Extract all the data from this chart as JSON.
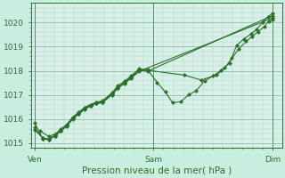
{
  "background_color": "#c8eee0",
  "plot_bg_color": "#d8f0e8",
  "grid_major_color": "#88bbaa",
  "grid_minor_color": "#aad4c4",
  "line_color": "#2d6e2d",
  "xlabel": "Pression niveau de la mer( hPa )",
  "xtick_labels": [
    "Ven",
    "Sam",
    "Dim"
  ],
  "xtick_positions": [
    0.0,
    1.0,
    2.0
  ],
  "ylim": [
    1014.8,
    1020.8
  ],
  "yticks": [
    1015,
    1016,
    1017,
    1018,
    1019,
    1020
  ],
  "figsize": [
    3.2,
    2.0
  ],
  "dpi": 100,
  "xlim": [
    -0.03,
    2.08
  ],
  "series": [
    {
      "points": [
        [
          0.0,
          1015.85
        ],
        [
          0.07,
          1015.18
        ],
        [
          0.12,
          1015.15
        ],
        [
          0.17,
          1015.3
        ],
        [
          0.22,
          1015.52
        ],
        [
          0.27,
          1015.72
        ],
        [
          0.32,
          1016.05
        ],
        [
          0.37,
          1016.25
        ],
        [
          0.42,
          1016.45
        ],
        [
          0.47,
          1016.6
        ],
        [
          0.52,
          1016.68
        ],
        [
          0.57,
          1016.73
        ],
        [
          0.65,
          1017.05
        ],
        [
          0.7,
          1017.3
        ],
        [
          0.76,
          1017.52
        ],
        [
          0.81,
          1017.72
        ],
        [
          0.88,
          1018.02
        ],
        [
          0.95,
          1018.05
        ],
        [
          1.03,
          1017.52
        ],
        [
          1.1,
          1017.12
        ],
        [
          1.16,
          1016.68
        ],
        [
          1.23,
          1016.72
        ],
        [
          1.3,
          1017.02
        ],
        [
          1.36,
          1017.18
        ],
        [
          1.43,
          1017.58
        ],
        [
          1.5,
          1017.78
        ],
        [
          1.57,
          1018.02
        ],
        [
          1.64,
          1018.32
        ],
        [
          1.7,
          1019.05
        ],
        [
          1.76,
          1019.32
        ],
        [
          1.82,
          1019.52
        ],
        [
          1.87,
          1019.72
        ],
        [
          1.92,
          1020.02
        ],
        [
          1.96,
          1020.22
        ],
        [
          2.0,
          1020.38
        ]
      ]
    },
    {
      "points": [
        [
          0.05,
          1015.5
        ],
        [
          0.12,
          1015.28
        ],
        [
          0.17,
          1015.38
        ],
        [
          0.22,
          1015.58
        ],
        [
          0.27,
          1015.78
        ],
        [
          0.32,
          1016.08
        ],
        [
          0.37,
          1016.28
        ],
        [
          0.42,
          1016.48
        ],
        [
          0.47,
          1016.6
        ],
        [
          0.52,
          1016.7
        ],
        [
          0.57,
          1016.75
        ],
        [
          0.65,
          1017.08
        ],
        [
          0.7,
          1017.38
        ],
        [
          0.76,
          1017.58
        ],
        [
          0.81,
          1017.78
        ],
        [
          0.88,
          1018.08
        ],
        [
          0.95,
          1018.02
        ],
        [
          1.26,
          1017.82
        ],
        [
          1.4,
          1017.62
        ],
        [
          1.53,
          1017.82
        ],
        [
          1.6,
          1018.12
        ],
        [
          1.66,
          1018.52
        ],
        [
          1.72,
          1018.92
        ],
        [
          1.78,
          1019.22
        ],
        [
          1.83,
          1019.42
        ],
        [
          1.88,
          1019.62
        ],
        [
          1.93,
          1019.82
        ],
        [
          1.97,
          1020.05
        ],
        [
          2.0,
          1020.12
        ]
      ]
    },
    {
      "points": [
        [
          0.0,
          1015.55
        ],
        [
          0.07,
          1015.22
        ],
        [
          0.12,
          1015.18
        ],
        [
          0.17,
          1015.32
        ],
        [
          0.22,
          1015.52
        ],
        [
          0.27,
          1015.72
        ],
        [
          0.32,
          1016.02
        ],
        [
          0.37,
          1016.22
        ],
        [
          0.42,
          1016.42
        ],
        [
          0.47,
          1016.56
        ],
        [
          0.52,
          1016.66
        ],
        [
          0.57,
          1016.7
        ],
        [
          0.65,
          1017.02
        ],
        [
          0.7,
          1017.32
        ],
        [
          0.76,
          1017.52
        ],
        [
          0.81,
          1017.72
        ],
        [
          0.88,
          1018.02
        ],
        [
          0.95,
          1017.98
        ],
        [
          2.0,
          1020.28
        ]
      ]
    },
    {
      "points": [
        [
          0.0,
          1015.65
        ],
        [
          0.07,
          1015.2
        ],
        [
          0.12,
          1015.16
        ],
        [
          0.17,
          1015.3
        ],
        [
          0.22,
          1015.5
        ],
        [
          0.27,
          1015.7
        ],
        [
          0.32,
          1016.0
        ],
        [
          0.37,
          1016.2
        ],
        [
          0.42,
          1016.4
        ],
        [
          0.47,
          1016.54
        ],
        [
          0.52,
          1016.64
        ],
        [
          0.57,
          1016.68
        ],
        [
          0.65,
          1017.0
        ],
        [
          0.7,
          1017.28
        ],
        [
          0.76,
          1017.48
        ],
        [
          0.81,
          1017.68
        ],
        [
          0.88,
          1017.98
        ],
        [
          2.0,
          1020.18
        ]
      ]
    }
  ]
}
